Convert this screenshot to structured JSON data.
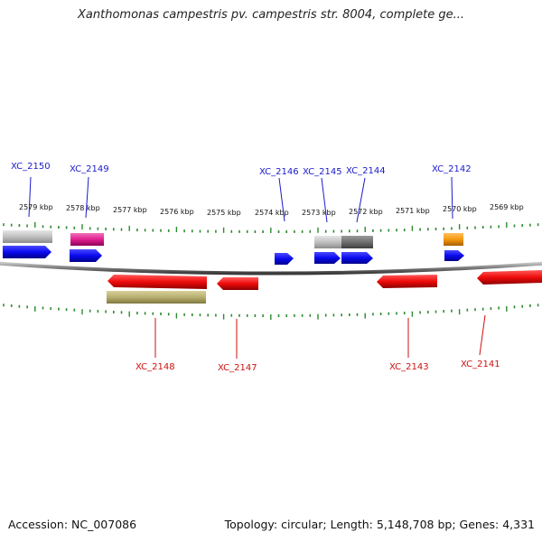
{
  "title": "Xanthomonas campestris pv. campestris str. 8004, complete ge...",
  "footer": {
    "accession": "Accession: NC_007086",
    "topology": "Topology: circular; Length: 5,148,708 bp; Genes: 4,331"
  },
  "kbp_labels": [
    "2579 kbp",
    "2578 kbp",
    "2577 kbp",
    "2576 kbp",
    "2575 kbp",
    "2574 kbp",
    "2573 kbp",
    "2572 kbp",
    "2571 kbp",
    "2570 kbp",
    "2569 kbp"
  ],
  "top_gene_labels": [
    "XC_2150",
    "XC_2149",
    "XC_2146",
    "XC_2145",
    "XC_2144",
    "XC_2142"
  ],
  "bottom_gene_labels": [
    "XC_2148",
    "XC_2147",
    "XC_2143",
    "XC_2141"
  ],
  "colors": {
    "forward_gene": "#0a0af0",
    "reverse_gene": "#ee0b0b",
    "backbone": "#8a8a8a",
    "tick": "#2e8b2e",
    "pink": "#e0208f",
    "orange": "#f59a10",
    "light_gray": "#c0c0c0",
    "dark_gray": "#6f6f6f",
    "khaki": "#b8b070",
    "top_label": "#1a1acc",
    "bottom_label": "#cc1111"
  }
}
